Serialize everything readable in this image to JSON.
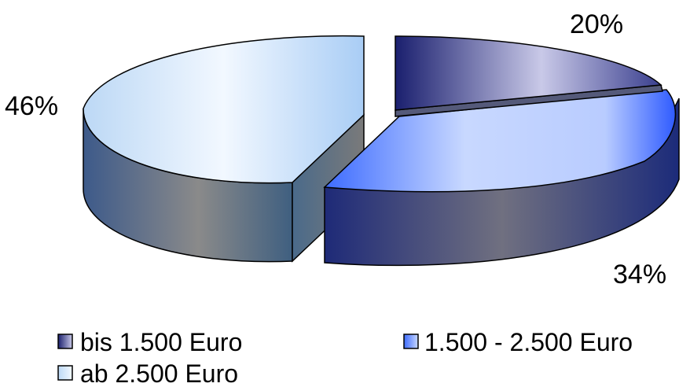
{
  "chart_data": {
    "type": "pie",
    "style": "3d-exploded",
    "legend_position": "bottom",
    "slices": [
      {
        "name": "bis 1.500 Euro",
        "value": 20,
        "label": "20%",
        "color": "#1a237e"
      },
      {
        "name": "1.500 - 2.500 Euro",
        "value": 34,
        "label": "34%",
        "color": "#3f6dff"
      },
      {
        "name": "ab 2.500 Euro",
        "value": 46,
        "label": "46%",
        "color": "#d6e8ff"
      }
    ]
  }
}
